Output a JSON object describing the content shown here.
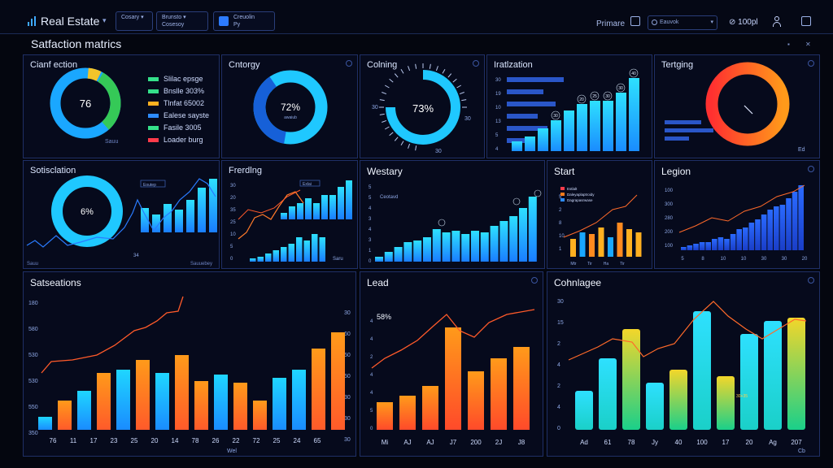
{
  "header": {
    "brand": "Real Estate",
    "box1": "Cosary",
    "box2_title": "Brunsto",
    "box2_sub": "Cosesoy",
    "box3_title": "Creuolin",
    "box3_sub": "Py",
    "right_label": "Primare",
    "search_text": "Eauvok",
    "zoom": "100pl"
  },
  "page": {
    "title": "Satfaction matrics"
  },
  "colors": {
    "blue": "#1aa7ff",
    "cyan": "#1fd6ff",
    "green": "#35c957",
    "orange": "#ff8a1f",
    "red": "#ff3b4a",
    "yellow": "#f3c42a",
    "line": "#ff6a2a"
  },
  "panels": {
    "p1": {
      "title": "Cianf ection",
      "center": "76",
      "footer": "Sauu",
      "legend": [
        {
          "label": "Slilac epsge",
          "color": "#35e08a"
        },
        {
          "label": "Bnslle 303%",
          "color": "#35e08a"
        },
        {
          "label": "Tlnfat 65002",
          "color": "#ffb020"
        },
        {
          "label": "Ealese sayste",
          "color": "#2d8bff"
        },
        {
          "label": "Fasile 3005",
          "color": "#35e08a"
        },
        {
          "label": "Loader burg",
          "color": "#ff3b4a"
        }
      ]
    },
    "p2": {
      "title": "Cntorgy",
      "center": "72%",
      "sub": "awaiub",
      "ticks": [
        "10",
        "20",
        "5",
        "8",
        "4",
        "1"
      ]
    },
    "p3": {
      "title": "Colning",
      "center": "73%",
      "left_tick": "30",
      "right_tick": "30",
      "bottom_tick": "30"
    },
    "p4": {
      "title": "Iratlzation",
      "ticks": [
        "30",
        "19",
        "10",
        "13",
        "5",
        "4"
      ],
      "bar_labels": [
        "30",
        "20",
        "25",
        "30",
        "30",
        "40"
      ]
    },
    "p5": {
      "title": "Tertging",
      "footer": "Ed"
    },
    "p6": {
      "title": "Sotisclation",
      "center": "6%",
      "footer_left": "Sauu",
      "footer_right": "Sauuebey",
      "tag": "Eoutep",
      "mark": "34"
    },
    "p7": {
      "title": "Frerdlng",
      "ticks": [
        "30",
        "20",
        "35",
        "25",
        "10",
        "5",
        "0"
      ],
      "tag": "Exlai",
      "footer": "Saru"
    },
    "p8": {
      "title": "Westary",
      "ticks": [
        "5",
        "5",
        "4",
        "3",
        "4",
        "3",
        "1",
        "0"
      ],
      "tag": "Ceotavd"
    },
    "p9": {
      "title": "Start",
      "ticks": [
        "5",
        "2",
        "8",
        "10",
        "1"
      ],
      "legend": [
        "Estlalt",
        "Daleyaplaptroidy",
        "Dagrapasrwase"
      ],
      "xlabels": [
        "Mtr",
        "Tir",
        "Ha",
        "Tir"
      ]
    },
    "p10": {
      "title": "Legion",
      "ticks": [
        "100",
        "300",
        "280",
        "200",
        "100"
      ],
      "xlabels": [
        "5",
        "8",
        "10",
        "10",
        "30",
        "30",
        "20"
      ]
    },
    "p11": {
      "title": "Satseations",
      "yleft": [
        "180",
        "580",
        "530",
        "530",
        "550",
        "350"
      ],
      "yright": [
        "30",
        "60",
        "50",
        "50",
        "30",
        "30",
        "30"
      ],
      "xlabels": [
        "76",
        "11",
        "17",
        "23",
        "25",
        "20",
        "14",
        "78",
        "26",
        "22",
        "72",
        "25",
        "24",
        "65"
      ],
      "xcaption": "Wel"
    },
    "p12": {
      "title": "Lead",
      "annot": "58%",
      "ticks": [
        "4",
        "4",
        "2",
        "4",
        "4",
        "5",
        "0"
      ],
      "xlabels": [
        "Mi",
        "AJ",
        "AJ",
        "J7",
        "200",
        "2J",
        "J8"
      ]
    },
    "p13": {
      "title": "Cohnlagee",
      "ticks": [
        "30",
        "15",
        "2",
        "4",
        "2",
        "4",
        "0"
      ],
      "xlabels": [
        "Ad",
        "61",
        "78",
        "Jy",
        "40",
        "100",
        "17",
        "20",
        "Ag",
        "207"
      ],
      "xcaption": "Cb",
      "mark": "30+35"
    }
  }
}
